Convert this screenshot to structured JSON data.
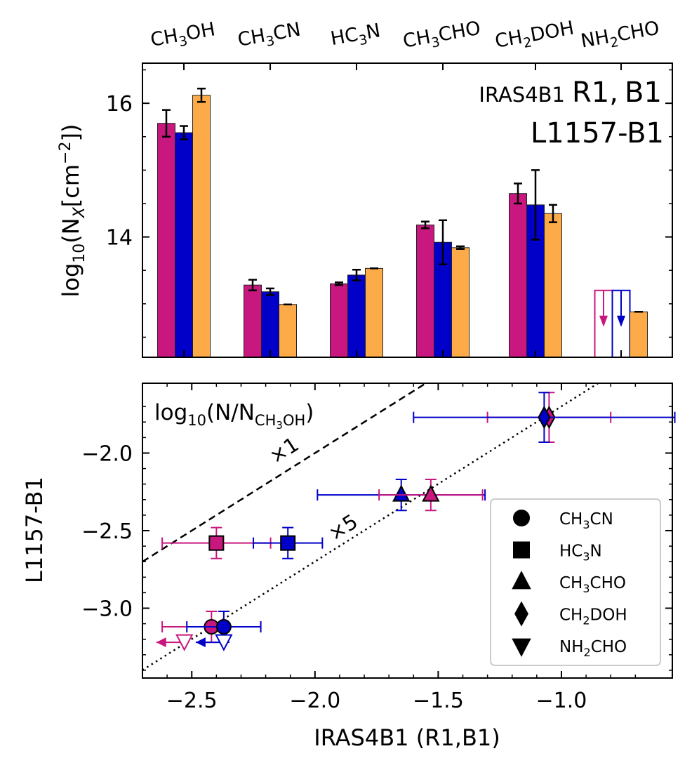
{
  "colors": {
    "R1": "#c8177f",
    "B1": "#0000c8",
    "L1157": "#fdab48",
    "axis": "#000000"
  },
  "top_panel": {
    "ylabel_main": "log",
    "ylabel_sub": "10",
    "ylabel_rest": "(N",
    "ylabel_nsub": "X",
    "ylabel_unit": "[cm",
    "ylabel_exp": "−2",
    "ylabel_close": "])",
    "legend_source1": "IRAS4B1",
    "legend_r1": "R1,",
    "legend_b1": "B1",
    "legend_source2": "L1157-B1",
    "molecules": [
      {
        "main": "CH",
        "sub": "3",
        "rest": "OH"
      },
      {
        "main": "CH",
        "sub": "3",
        "rest": "CN"
      },
      {
        "main": "HC",
        "sub": "3",
        "rest": "N"
      },
      {
        "main": "CH",
        "sub": "3",
        "rest": "CHO"
      },
      {
        "main": "CH",
        "sub": "2",
        "rest": "DOH"
      },
      {
        "main": "NH",
        "sub": "2",
        "rest": "CHO"
      }
    ]
  },
  "bottom_panel": {
    "xlabel": "IRAS4B1 (R1,B1)",
    "ylabel": "L1157-B1",
    "inset_main": "log",
    "inset_sub": "10",
    "inset_rest": "(N/N",
    "inset_nsub": "CH",
    "inset_nsub2": "3",
    "inset_nsub3": "OH",
    "inset_close": ")",
    "line1_label": "×1",
    "line5_label": "×5",
    "legend": [
      {
        "symbol": "circle",
        "main": "CH",
        "sub": "3",
        "rest": "CN"
      },
      {
        "symbol": "square",
        "main": "HC",
        "sub": "3",
        "rest": "N"
      },
      {
        "symbol": "triangle-up",
        "main": "CH",
        "sub": "3",
        "rest": "CHO"
      },
      {
        "symbol": "diamond",
        "main": "CH",
        "sub": "2",
        "rest": "DOH"
      },
      {
        "symbol": "triangle-down",
        "main": "NH",
        "sub": "2",
        "rest": "CHO"
      }
    ]
  },
  "chart_data": [
    {
      "type": "bar",
      "title": "",
      "ylabel": "log10(N_X[cm^-2])",
      "ylim": [
        12.2,
        16.6
      ],
      "yticks": [
        14,
        16
      ],
      "categories": [
        "CH3OH",
        "CH3CN",
        "HC3N",
        "CH3CHO",
        "CH2DOH",
        "NH2CHO"
      ],
      "series": [
        {
          "name": "IRAS4B1 R1",
          "values": [
            15.7,
            13.28,
            13.3,
            14.18,
            14.65,
            13.2
          ],
          "errors": [
            0.2,
            0.08,
            0.02,
            0.05,
            0.15,
            null
          ],
          "upper_limit": [
            false,
            false,
            false,
            false,
            false,
            true
          ]
        },
        {
          "name": "IRAS4B1 B1",
          "values": [
            15.56,
            13.18,
            13.43,
            13.92,
            14.48,
            13.2
          ],
          "errors": [
            0.1,
            0.05,
            0.08,
            0.33,
            0.52,
            null
          ],
          "upper_limit": [
            false,
            false,
            false,
            false,
            false,
            true
          ]
        },
        {
          "name": "L1157-B1",
          "values": [
            16.12,
            12.99,
            13.53,
            13.84,
            14.35,
            12.88
          ],
          "errors": [
            0.1,
            0.0,
            0.0,
            0.02,
            0.13,
            0.0
          ],
          "upper_limit": [
            false,
            false,
            false,
            false,
            false,
            false
          ]
        }
      ]
    },
    {
      "type": "scatter",
      "title": "",
      "xlabel": "IRAS4B1 (R1,B1)",
      "ylabel": "L1157-B1",
      "xlim": [
        -2.7,
        -0.55
      ],
      "ylim": [
        -3.45,
        -1.55
      ],
      "xticks": [
        -2.5,
        -2.0,
        -1.5,
        -1.0
      ],
      "yticks": [
        -3.0,
        -2.5,
        -2.0
      ],
      "lines": [
        {
          "name": "×1",
          "slope": 1,
          "offset": 0,
          "style": "dashed"
        },
        {
          "name": "×5",
          "slope": 1,
          "offset": -0.699,
          "style": "dotted"
        }
      ],
      "points": [
        {
          "molecule": "CH3CN",
          "marker": "circle",
          "source": "R1",
          "x": -2.42,
          "y": -3.12,
          "xerr": [
            0.2,
            0.2
          ],
          "yerr": 0.1
        },
        {
          "molecule": "CH3CN",
          "marker": "circle",
          "source": "B1",
          "x": -2.37,
          "y": -3.12,
          "xerr": [
            0.15,
            0.15
          ],
          "yerr": 0.1
        },
        {
          "molecule": "HC3N",
          "marker": "square",
          "source": "R1",
          "x": -2.4,
          "y": -2.58,
          "xerr": [
            0.22,
            0.22
          ],
          "yerr": 0.1
        },
        {
          "molecule": "HC3N",
          "marker": "square",
          "source": "B1",
          "x": -2.11,
          "y": -2.58,
          "xerr": [
            0.14,
            0.14
          ],
          "yerr": 0.1
        },
        {
          "molecule": "CH3CHO",
          "marker": "triangle-up",
          "source": "B1",
          "x": -1.65,
          "y": -2.27,
          "xerr": [
            0.34,
            0.34
          ],
          "yerr": 0.1
        },
        {
          "molecule": "CH3CHO",
          "marker": "triangle-up",
          "source": "R1",
          "x": -1.53,
          "y": -2.27,
          "xerr": [
            0.21,
            0.21
          ],
          "yerr": 0.1
        },
        {
          "molecule": "CH2DOH",
          "marker": "diamond",
          "source": "R1",
          "x": -1.05,
          "y": -1.77,
          "xerr": [
            0.25,
            0.25
          ],
          "yerr": 0.16
        },
        {
          "molecule": "CH2DOH",
          "marker": "diamond",
          "source": "B1",
          "x": -1.07,
          "y": -1.77,
          "xerr": [
            0.53,
            0.53
          ],
          "yerr": 0.16
        },
        {
          "molecule": "NH2CHO",
          "marker": "triangle-down",
          "source": "R1",
          "x": -2.53,
          "y": -3.22,
          "upper_limit_x": true
        },
        {
          "molecule": "NH2CHO",
          "marker": "triangle-down",
          "source": "B1",
          "x": -2.37,
          "y": -3.22,
          "upper_limit_x": true
        }
      ]
    }
  ]
}
